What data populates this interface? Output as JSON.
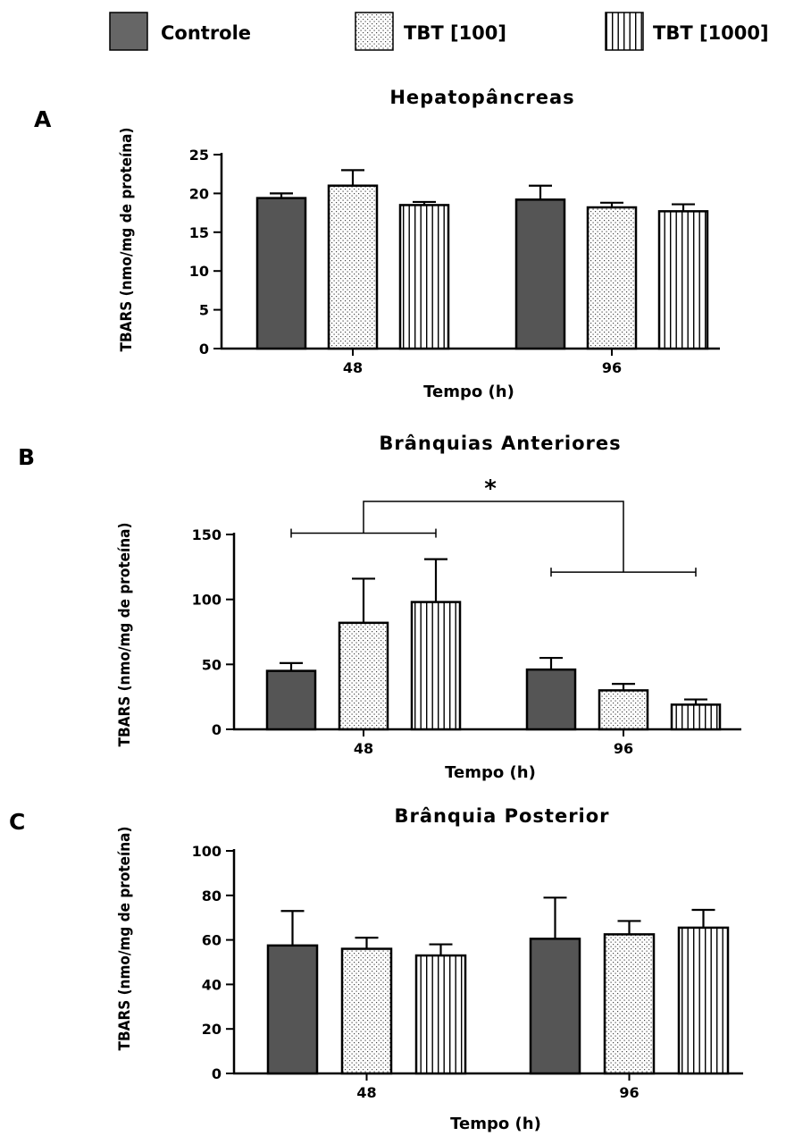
{
  "legend": [
    {
      "label": "Controle",
      "pattern": "solid"
    },
    {
      "label": "TBT [100]",
      "pattern": "dots"
    },
    {
      "label": "TBT [1000]",
      "pattern": "vlines"
    }
  ],
  "colors": {
    "bar_fill": "#555555",
    "stroke": "#000000"
  },
  "chart_data": [
    {
      "panel": "A",
      "type": "bar",
      "title": "Hepatopâncreas",
      "xlabel": "Tempo (h)",
      "ylabel": "TBARS (nmo/mg de proteína)",
      "categories": [
        "48",
        "96"
      ],
      "ylim": [
        0,
        25
      ],
      "yticks": [
        0,
        5,
        10,
        15,
        20,
        25
      ],
      "series": [
        {
          "name": "Controle",
          "values": [
            19.4,
            19.2
          ],
          "errors": [
            0.6,
            1.8
          ]
        },
        {
          "name": "TBT [100]",
          "values": [
            21.0,
            18.2
          ],
          "errors": [
            2.0,
            0.6
          ]
        },
        {
          "name": "TBT [1000]",
          "values": [
            18.5,
            17.7
          ],
          "errors": [
            0.4,
            0.9
          ]
        }
      ]
    },
    {
      "panel": "B",
      "type": "bar",
      "title": "Brânquias Anteriores",
      "xlabel": "Tempo (h)",
      "ylabel": "TBARS (nmo/mg de proteína)",
      "categories": [
        "48",
        "96"
      ],
      "ylim": [
        0,
        150
      ],
      "yticks": [
        0,
        50,
        100,
        150
      ],
      "series": [
        {
          "name": "Controle",
          "values": [
            45,
            46
          ],
          "errors": [
            6,
            9
          ]
        },
        {
          "name": "TBT [100]",
          "values": [
            82,
            30
          ],
          "errors": [
            34,
            5
          ]
        },
        {
          "name": "TBT [1000]",
          "values": [
            98,
            19
          ],
          "errors": [
            33,
            4
          ]
        }
      ],
      "significance": {
        "symbol": "*",
        "left_bracket_y": 151,
        "right_bracket_y": 121
      }
    },
    {
      "panel": "C",
      "type": "bar",
      "title": "Brânquia Posterior",
      "xlabel": "Tempo (h)",
      "ylabel": "TBARS (nmo/mg de proteína)",
      "categories": [
        "48",
        "96"
      ],
      "ylim": [
        0,
        100
      ],
      "yticks": [
        0,
        20,
        40,
        60,
        80,
        100
      ],
      "series": [
        {
          "name": "Controle",
          "values": [
            57.5,
            60.5
          ],
          "errors": [
            15.5,
            18.5
          ]
        },
        {
          "name": "TBT [100]",
          "values": [
            56,
            62.5
          ],
          "errors": [
            5,
            6
          ]
        },
        {
          "name": "TBT [1000]",
          "values": [
            53,
            65.5
          ],
          "errors": [
            5,
            8
          ]
        }
      ]
    }
  ]
}
